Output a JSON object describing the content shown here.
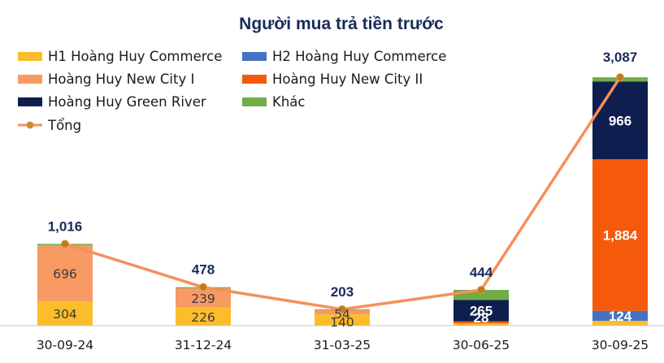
{
  "chart_data": {
    "type": "bar",
    "stacked": true,
    "title": "Người mua trả tiền trước",
    "categories": [
      "30-09-24",
      "31-12-24",
      "31-03-25",
      "30-06-25",
      "30-09-25"
    ],
    "ylim": [
      0,
      3200
    ],
    "grid": false,
    "legend_position": "top-left",
    "series": [
      {
        "name": "H1 Hoàng Huy Commerce",
        "color": "#fbbd2a",
        "values": [
          304,
          226,
          140,
          28,
          60
        ],
        "labels": [
          "304",
          "226",
          "140",
          "28",
          ""
        ]
      },
      {
        "name": "H2 Hoàng Huy Commerce",
        "color": "#4472c4",
        "values": [
          0,
          0,
          0,
          0,
          124
        ],
        "labels": [
          "",
          "",
          "",
          "",
          "124"
        ]
      },
      {
        "name": "Hoàng Huy New City I",
        "color": "#f79a63",
        "values": [
          696,
          239,
          54,
          0,
          0
        ],
        "labels": [
          "696",
          "239",
          "54",
          "",
          ""
        ]
      },
      {
        "name": "Hoàng Huy New City II",
        "color": "#f45a0a",
        "values": [
          0,
          0,
          0,
          25,
          1884
        ],
        "labels": [
          "",
          "",
          "",
          "",
          "1,884"
        ]
      },
      {
        "name": "Hoàng Huy Green River",
        "color": "#0e1f4f",
        "values": [
          0,
          0,
          0,
          265,
          966
        ],
        "labels": [
          "",
          "",
          "",
          "265",
          "966"
        ]
      },
      {
        "name": "Khác",
        "color": "#70ad47",
        "values": [
          16,
          13,
          9,
          126,
          53
        ],
        "labels": [
          "",
          "",
          "",
          "",
          ""
        ]
      }
    ],
    "total": {
      "name": "Tổng",
      "color": "#f4905a",
      "values": [
        1016,
        478,
        203,
        444,
        3087
      ],
      "labels": [
        "1,016",
        "478",
        "203",
        "444",
        "3,087"
      ]
    }
  }
}
